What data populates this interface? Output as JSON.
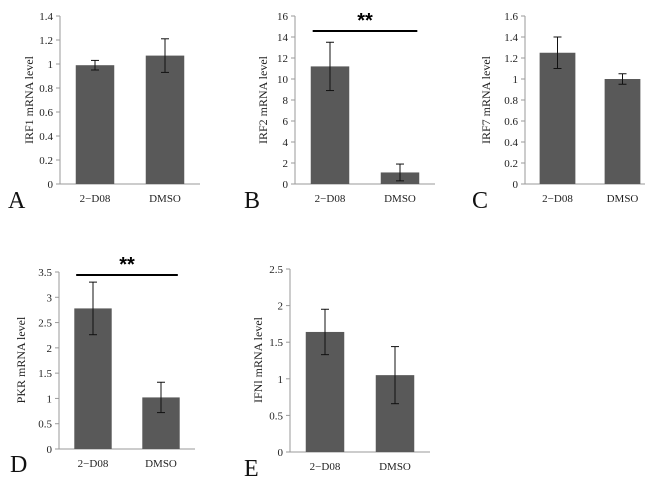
{
  "chart_data": [
    {
      "type": "bar",
      "panel": "A",
      "categories": [
        "2−D08",
        "DMSO"
      ],
      "values": [
        0.99,
        1.07
      ],
      "errors": [
        0.04,
        0.14
      ],
      "ylabel": "IRF1  mRNA level",
      "ylim": [
        0,
        1.4
      ],
      "yticks": [
        "0",
        "0.2",
        "0.4",
        "0.6",
        "0.8",
        "1",
        "1.2",
        "1.4"
      ],
      "significance": ""
    },
    {
      "type": "bar",
      "panel": "B",
      "categories": [
        "2−D08",
        "DMSO"
      ],
      "values": [
        11.2,
        1.1
      ],
      "errors": [
        2.3,
        0.8
      ],
      "ylabel": "IRF2  mRNA level",
      "ylim": [
        0,
        16
      ],
      "yticks": [
        "0",
        "2",
        "4",
        "6",
        "8",
        "10",
        "12",
        "14",
        "16"
      ],
      "significance": "**"
    },
    {
      "type": "bar",
      "panel": "C",
      "categories": [
        "2−D08",
        "DMSO"
      ],
      "values": [
        1.25,
        1.0
      ],
      "errors": [
        0.15,
        0.05
      ],
      "ylabel": "IRF7  mRNA level",
      "ylim": [
        0,
        1.6
      ],
      "yticks": [
        "0",
        "0.2",
        "0.4",
        "0.6",
        "0.8",
        "1",
        "1.2",
        "1.4",
        "1.6"
      ],
      "significance": ""
    },
    {
      "type": "bar",
      "panel": "D",
      "categories": [
        "2−D08",
        "DMSO"
      ],
      "values": [
        2.78,
        1.02
      ],
      "errors": [
        0.52,
        0.3
      ],
      "ylabel": "PKR mRNA level",
      "ylim": [
        0,
        3.5
      ],
      "yticks": [
        "0",
        "0.5",
        "1",
        "1.5",
        "2",
        "2.5",
        "3",
        "3.5"
      ],
      "significance": "**"
    },
    {
      "type": "bar",
      "panel": "E",
      "categories": [
        "2−D08",
        "DMSO"
      ],
      "values": [
        1.64,
        1.05
      ],
      "errors": [
        0.31,
        0.39
      ],
      "ylabel": "IFNl mRNA level",
      "ylim": [
        0,
        2.5
      ],
      "yticks": [
        "0",
        "0.5",
        "1",
        "1.5",
        "2",
        "2.5"
      ],
      "significance": ""
    }
  ]
}
